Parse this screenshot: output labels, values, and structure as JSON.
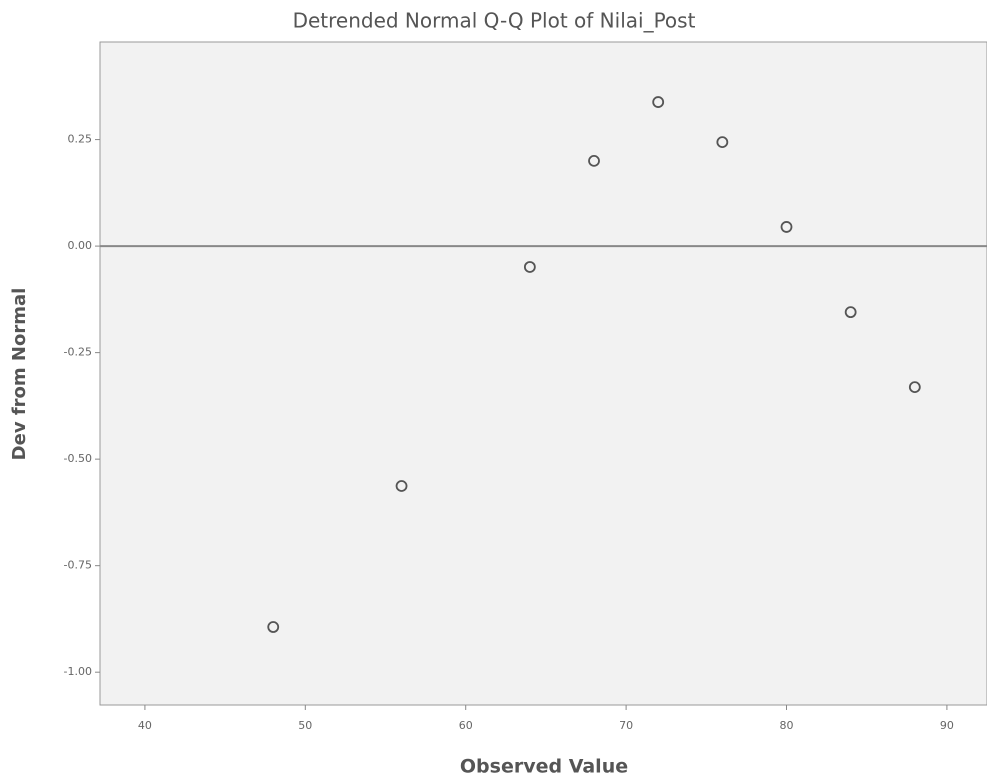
{
  "chart_data": {
    "type": "scatter",
    "title": "Detrended Normal Q-Q Plot of Nilai_Post",
    "x_label": "Observed Value",
    "y_label": "Dev from Normal",
    "x": [
      48,
      56,
      64,
      68,
      72,
      76,
      80,
      84,
      88
    ],
    "values": [
      -0.894,
      -0.563,
      -0.049,
      0.2,
      0.338,
      0.244,
      0.045,
      -0.155,
      -0.331
    ],
    "color": "#555555",
    "xlim": [
      37.2,
      92.5
    ],
    "xticks": [
      40,
      50,
      60,
      70,
      80,
      90
    ],
    "ylim": [
      -1.077,
      0.479
    ],
    "yticks": [
      0.25,
      {
        "value": 0,
        "label": "0.00"
      },
      -0.25,
      {
        "value": -0.5,
        "label": "-0.50"
      },
      -0.75,
      {
        "value": -1,
        "label": "-1.00"
      }
    ],
    "reference_line": 0
  }
}
